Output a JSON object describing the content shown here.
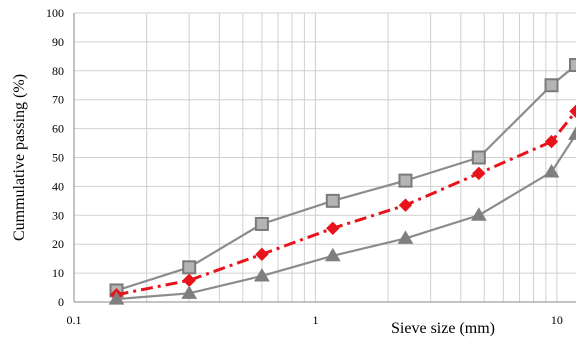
{
  "chart_data": {
    "type": "line",
    "xlabel": "Sieve size (mm)",
    "ylabel": "Cummulative passing (%)",
    "x_scale": "log",
    "xlim": [
      0.1,
      12
    ],
    "ylim": [
      0,
      100
    ],
    "x_ticks": [
      "0.1",
      "1",
      "10"
    ],
    "y_ticks": [
      "0",
      "10",
      "20",
      "30",
      "40",
      "50",
      "60",
      "70",
      "80",
      "90",
      "100"
    ],
    "grid": true,
    "legend": "none",
    "series": [
      {
        "marker": "square",
        "color": "#8c8c8c",
        "line_style": "solid",
        "x": [
          0.15,
          0.3,
          0.6,
          1.18,
          2.36,
          4.75,
          9.5,
          12
        ],
        "y": [
          4,
          12,
          27,
          35,
          42,
          50,
          75,
          82
        ]
      },
      {
        "marker": "diamond",
        "color": "#e8141b",
        "line_style": "dash-dot",
        "x": [
          0.15,
          0.3,
          0.6,
          1.18,
          2.36,
          4.75,
          9.5,
          12
        ],
        "y": [
          2.5,
          7.5,
          16.5,
          25.5,
          33.5,
          44.5,
          55.5,
          66
        ]
      },
      {
        "marker": "triangle",
        "color": "#8c8c8c",
        "line_style": "solid",
        "x": [
          0.15,
          0.3,
          0.6,
          1.18,
          2.36,
          4.75,
          9.5,
          12
        ],
        "y": [
          1,
          3,
          9,
          16,
          22,
          30,
          45,
          58
        ]
      }
    ]
  }
}
